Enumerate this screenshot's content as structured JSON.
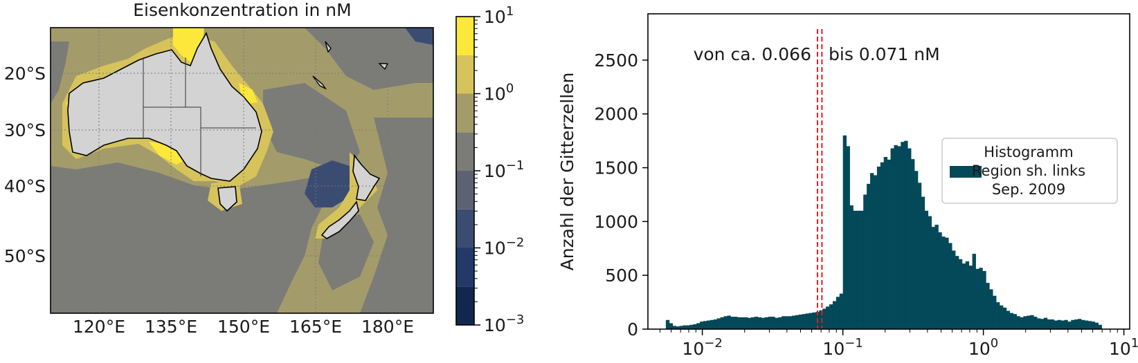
{
  "chart_data": [
    {
      "type": "heatmap",
      "title": "Eisenkonzentration in nM",
      "x_ticks": [
        "120°E",
        "135°E",
        "150°E",
        "165°E",
        "180°E"
      ],
      "y_ticks": [
        "20°S",
        "30°S",
        "40°S",
        "50°S"
      ],
      "lon_range": [
        110,
        190
      ],
      "lat_range": [
        -59,
        -13
      ],
      "colorbar": {
        "scale": "log",
        "range": [
          0.001,
          10
        ],
        "labels": [
          {
            "base": "10",
            "exp": "1",
            "value": 10
          },
          {
            "base": "10",
            "exp": "0",
            "value": 1
          },
          {
            "base": "10",
            "exp": "−1",
            "value": 0.1
          },
          {
            "base": "10",
            "exp": "−2",
            "value": 0.01
          },
          {
            "base": "10",
            "exp": "−3",
            "value": 0.001
          }
        ],
        "bands": [
          {
            "from": 0.001,
            "to": 0.00316,
            "color": "#12274f"
          },
          {
            "from": 0.00316,
            "to": 0.01,
            "color": "#233a69"
          },
          {
            "from": 0.01,
            "to": 0.0316,
            "color": "#3b4c73"
          },
          {
            "from": 0.0316,
            "to": 0.1,
            "color": "#5c6272"
          },
          {
            "from": 0.1,
            "to": 0.316,
            "color": "#7b7b78"
          },
          {
            "from": 0.316,
            "to": 1,
            "color": "#a39c6a"
          },
          {
            "from": 1,
            "to": 3.16,
            "color": "#d6c35c"
          },
          {
            "from": 3.16,
            "to": 10,
            "color": "#fbe83a"
          }
        ]
      },
      "colors": {
        "land": "#d3d3d3",
        "ocean_base": "#a39c6a",
        "ocean_mid": "#7b7b78",
        "ocean_low": "#3b4c73",
        "coast": "#e7cf52"
      }
    },
    {
      "type": "bar",
      "ylabel": "Anzahl der Gitterzellen",
      "x_scale": "log",
      "xlim": [
        0.0041,
        11
      ],
      "ylim": [
        0,
        2930
      ],
      "y_ticks": [
        0,
        500,
        1000,
        1500,
        2000,
        2500
      ],
      "x_tick_labels": [
        {
          "base": "10",
          "exp": "−2",
          "value": 0.01
        },
        {
          "base": "10",
          "exp": "−1",
          "value": 0.1
        },
        {
          "base": "10",
          "exp": "0",
          "value": 1
        },
        {
          "base": "10",
          "exp": "1",
          "value": 10
        }
      ],
      "bar_color": "#034959",
      "legend": {
        "placement": "right",
        "lines": [
          "Histogramm",
          "Region sh. links",
          "Sep. 2009"
        ]
      },
      "annotation_left": "von ca. 0.066",
      "annotation_right": "bis 0.071 nM",
      "vlines": [
        {
          "x": 0.066,
          "color": "#dd1f1f"
        },
        {
          "x": 0.071,
          "color": "#dd1f1f"
        }
      ],
      "bin_edges": [
        0.0055,
        6.95
      ],
      "counts": [
        85,
        55,
        30,
        25,
        30,
        35,
        35,
        40,
        45,
        55,
        70,
        75,
        80,
        85,
        90,
        100,
        110,
        120,
        125,
        115,
        115,
        110,
        110,
        110,
        105,
        110,
        115,
        110,
        105,
        110,
        115,
        115,
        105,
        110,
        120,
        120,
        120,
        125,
        130,
        135,
        140,
        145,
        150,
        155,
        160,
        175,
        190,
        210,
        230,
        260,
        300,
        330,
        1800,
        1700,
        1150,
        1100,
        1100,
        1100,
        1250,
        1350,
        1450,
        1430,
        1510,
        1550,
        1600,
        1575,
        1680,
        1710,
        1700,
        1740,
        1750,
        1680,
        1580,
        1470,
        1360,
        1230,
        1100,
        1050,
        950,
        970,
        900,
        860,
        850,
        800,
        730,
        680,
        650,
        610,
        630,
        590,
        700,
        560,
        570,
        540,
        430,
        370,
        310,
        250,
        220,
        200,
        170,
        150,
        140,
        120,
        110,
        120,
        125,
        130,
        115,
        100,
        95,
        105,
        90,
        90,
        80,
        85,
        80,
        85,
        70,
        85,
        90,
        95,
        85,
        80,
        75,
        70,
        60,
        40
      ]
    }
  ]
}
